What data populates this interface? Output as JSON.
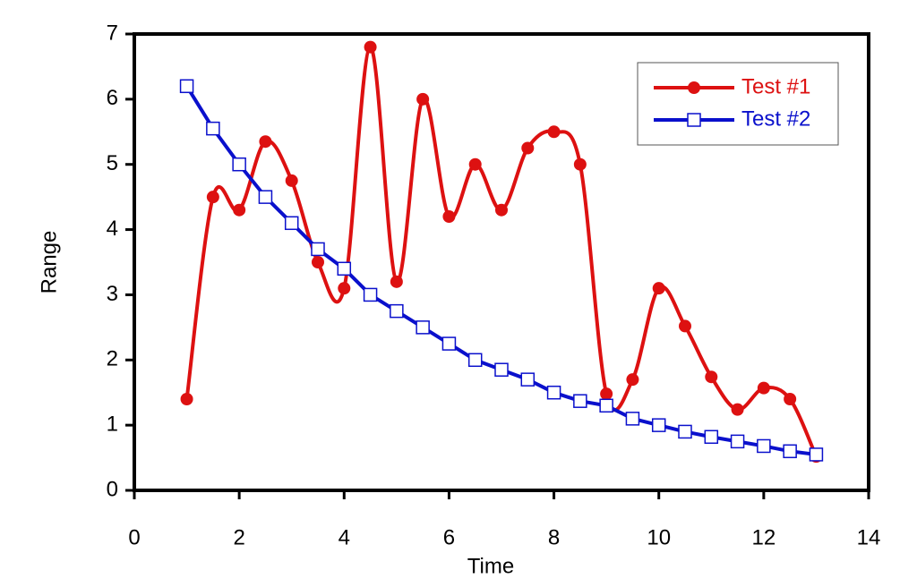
{
  "chart_data": {
    "type": "line",
    "x_label": "Time",
    "y_label": "Range",
    "xlim": [
      0,
      14
    ],
    "xticks": [
      0,
      2,
      4,
      6,
      8,
      10,
      12,
      14
    ],
    "ylim": [
      0,
      7
    ],
    "yticks": [
      0,
      1,
      2,
      3,
      4,
      5,
      6,
      7
    ],
    "legend": "top-right",
    "x": [
      1,
      1.5,
      2,
      2.5,
      3,
      3.5,
      4,
      4.5,
      5,
      5.5,
      6,
      6.5,
      7,
      7.5,
      8,
      8.5,
      9,
      9.5,
      10,
      10.5,
      11,
      11.5,
      12,
      12.5,
      13
    ],
    "series": [
      {
        "name": "Test #1",
        "color": "#dd1111",
        "marker": "circle",
        "smooth": true,
        "values": [
          1.4,
          4.5,
          4.3,
          5.35,
          4.75,
          3.5,
          3.1,
          6.8,
          3.2,
          6.0,
          4.2,
          5.0,
          4.3,
          5.25,
          5.5,
          5.0,
          1.48,
          1.7,
          3.1,
          2.52,
          1.74,
          1.24,
          1.57,
          1.4,
          0.52
        ]
      },
      {
        "name": "Test #2",
        "color": "#0a10cc",
        "marker": "square",
        "smooth": false,
        "values": [
          6.2,
          5.55,
          5.0,
          4.5,
          4.1,
          3.7,
          3.4,
          3.0,
          2.75,
          2.5,
          2.25,
          2.0,
          1.85,
          1.7,
          1.5,
          1.37,
          1.3,
          1.1,
          1.0,
          0.9,
          0.82,
          0.75,
          0.68,
          0.6,
          0.55
        ]
      }
    ]
  }
}
